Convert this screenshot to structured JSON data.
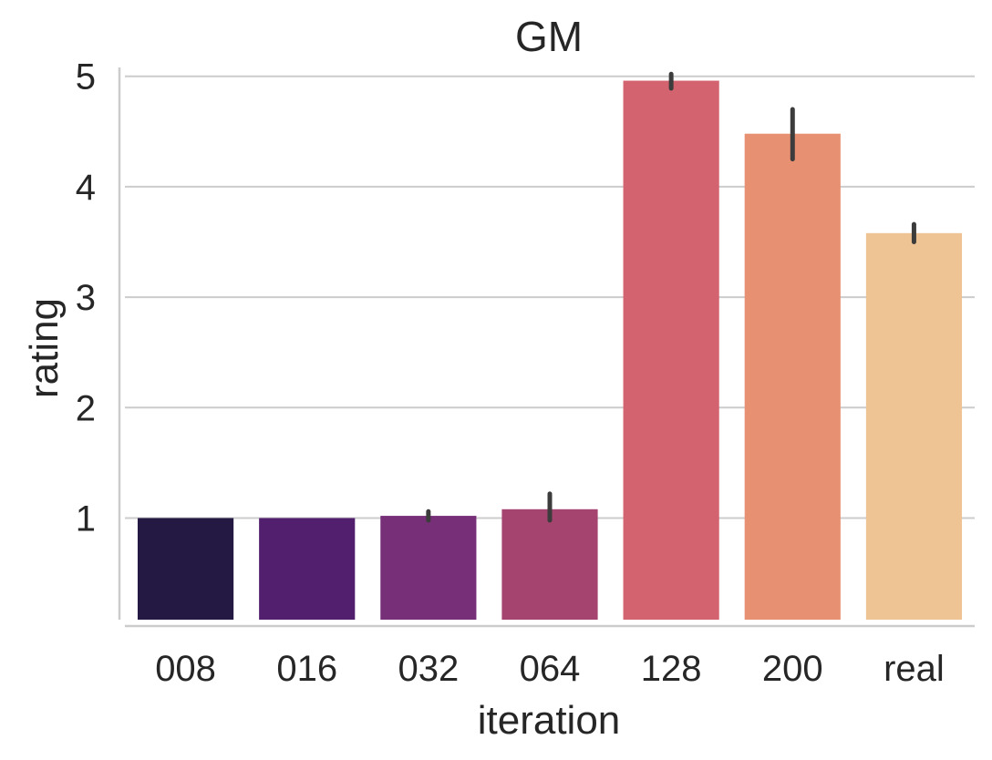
{
  "chart_data": {
    "type": "bar",
    "title": "GM",
    "xlabel": "iteration",
    "ylabel": "rating",
    "categories": [
      "008",
      "016",
      "032",
      "064",
      "128",
      "200",
      "real"
    ],
    "values": [
      1.0,
      1.0,
      1.02,
      1.08,
      4.96,
      4.48,
      3.58
    ],
    "error_low": [
      1.0,
      1.0,
      0.98,
      0.98,
      4.89,
      4.25,
      3.5
    ],
    "error_high": [
      1.0,
      1.0,
      1.06,
      1.22,
      5.02,
      4.7,
      3.66
    ],
    "colors": [
      "#231942",
      "#511f6e",
      "#772f77",
      "#a5446f",
      "#d3636f",
      "#e79072",
      "#eec495"
    ],
    "error_color": "#3c3c3c",
    "yticks": [
      1,
      2,
      3,
      4,
      5
    ],
    "ylim": [
      0.08,
      5.08
    ],
    "grid": "horizontal"
  }
}
